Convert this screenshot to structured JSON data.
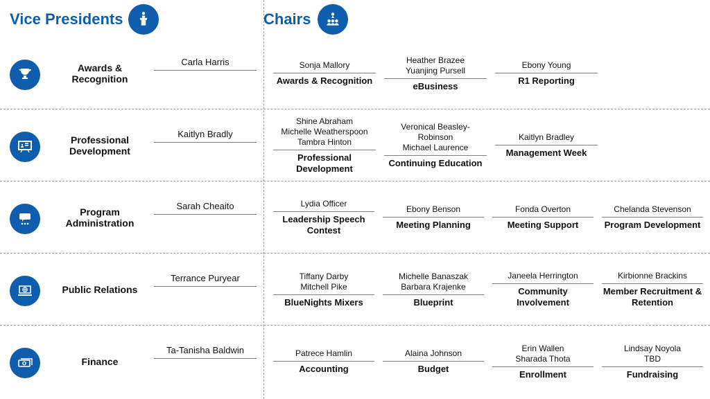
{
  "header": {
    "vp_title": "Vice Presidents",
    "chairs_title": "Chairs"
  },
  "colors": {
    "accent": "#0f5dad",
    "divider": "#9a9a9a",
    "text": "#111111",
    "rule": "#808080",
    "bg": "#ffffff"
  },
  "rows": [
    {
      "icon": "trophy",
      "dept": "Awards & Recognition",
      "vp": [
        "Carla Harris"
      ],
      "chairs": [
        {
          "names": [
            "Sonja Mallory"
          ],
          "role": "Awards & Recognition"
        },
        {
          "names": [
            "Heather Brazee",
            "Yuanjing Pursell"
          ],
          "role": "eBusiness"
        },
        {
          "names": [
            "Ebony Young"
          ],
          "role": "R1 Reporting"
        }
      ]
    },
    {
      "icon": "presentation",
      "dept": "Professional Development",
      "vp": [
        "Kaitlyn Bradly"
      ],
      "chairs": [
        {
          "names": [
            "Shine Abraham",
            "Michelle Weatherspoon",
            "Tambra Hinton"
          ],
          "role": "Professional Development",
          "small": true
        },
        {
          "names": [
            "Veronical Beasley-Robinson",
            "Michael Laurence"
          ],
          "role": "Continuing Education",
          "small": true
        },
        {
          "names": [
            "Kaitlyn Bradley"
          ],
          "role": "Management Week"
        }
      ]
    },
    {
      "icon": "chat-group",
      "dept": "Program Administration",
      "vp": [
        "Sarah Cheaito"
      ],
      "chairs": [
        {
          "names": [
            "Lydia Officer"
          ],
          "role": "Leadership Speech Contest"
        },
        {
          "names": [
            "Ebony Benson"
          ],
          "role": "Meeting Planning"
        },
        {
          "names": [
            "Fonda Overton"
          ],
          "role": "Meeting Support"
        },
        {
          "names": [
            "Chelanda Stevenson"
          ],
          "role": "Program Development"
        }
      ]
    },
    {
      "icon": "laptop-globe",
      "dept": "Public Relations",
      "vp": [
        "Terrance Puryear"
      ],
      "chairs": [
        {
          "names": [
            "Tiffany Darby",
            "Mitchell Pike"
          ],
          "role": "BlueNights Mixers"
        },
        {
          "names": [
            "Michelle Banaszak",
            "Barbara Krajenke"
          ],
          "role": "Blueprint"
        },
        {
          "names": [
            "Janeela Herrington"
          ],
          "role": "Community Involvement"
        },
        {
          "names": [
            "Kirbionne Brackins"
          ],
          "role": "Member Recruitment & Retention"
        }
      ]
    },
    {
      "icon": "money",
      "dept": "Finance",
      "vp": [
        "Ta-Tanisha Baldwin"
      ],
      "chairs": [
        {
          "names": [
            "Patrece Hamlin"
          ],
          "role": "Accounting"
        },
        {
          "names": [
            "Alaina Johnson"
          ],
          "role": "Budget"
        },
        {
          "names": [
            "Erin Wallen",
            "Sharada Thota"
          ],
          "role": "Enrollment"
        },
        {
          "names": [
            "Lindsay Noyola",
            "TBD"
          ],
          "role": "Fundraising"
        }
      ]
    }
  ]
}
